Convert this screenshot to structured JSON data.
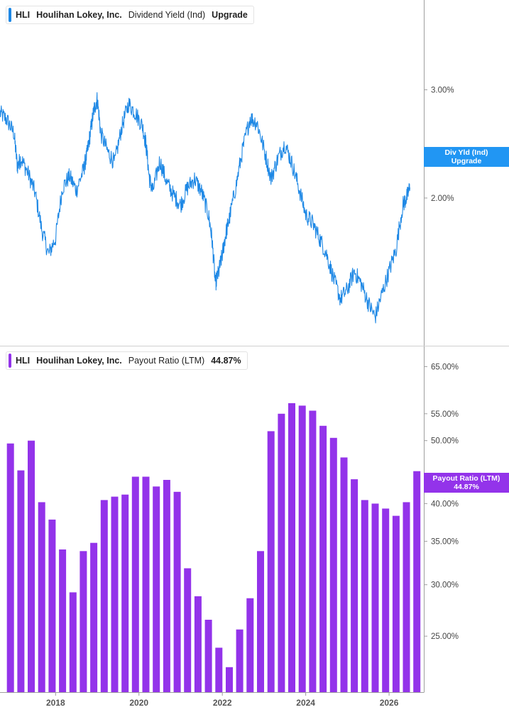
{
  "chart_data": [
    {
      "type": "line",
      "ticker": "HLI",
      "company": "Houlihan Lokey, Inc.",
      "series_name": "Dividend Yield (Ind)",
      "status": "Upgrade",
      "color": "#1e88e5",
      "yscale": "log",
      "ylim": [
        0.0115,
        0.042
      ],
      "y_ticks": [
        0.02,
        0.03
      ],
      "y_tick_labels": [
        "2.00%",
        "3.00%"
      ],
      "end_badge": [
        "Div Yld (Ind)",
        "Upgrade"
      ],
      "points": [
        [
          "2016-09",
          0.0275
        ],
        [
          "2016-11",
          0.0268
        ],
        [
          "2017-01",
          0.0255
        ],
        [
          "2017-02",
          0.0225
        ],
        [
          "2017-03",
          0.0232
        ],
        [
          "2017-05",
          0.022
        ],
        [
          "2017-07",
          0.0205
        ],
        [
          "2017-09",
          0.0178
        ],
        [
          "2017-11",
          0.0162
        ],
        [
          "2018-01",
          0.0172
        ],
        [
          "2018-03",
          0.0208
        ],
        [
          "2018-05",
          0.0217
        ],
        [
          "2018-07",
          0.0206
        ],
        [
          "2018-09",
          0.0222
        ],
        [
          "2018-10",
          0.0235
        ],
        [
          "2018-11",
          0.0255
        ],
        [
          "2018-12",
          0.0278
        ],
        [
          "2019-01",
          0.029
        ],
        [
          "2019-02",
          0.0255
        ],
        [
          "2019-04",
          0.0238
        ],
        [
          "2019-06",
          0.0228
        ],
        [
          "2019-08",
          0.026
        ],
        [
          "2019-10",
          0.0285
        ],
        [
          "2019-12",
          0.0275
        ],
        [
          "2020-02",
          0.0262
        ],
        [
          "2020-03",
          0.0245
        ],
        [
          "2020-04",
          0.0215
        ],
        [
          "2020-05",
          0.0205
        ],
        [
          "2020-07",
          0.023
        ],
        [
          "2020-09",
          0.0212
        ],
        [
          "2020-11",
          0.0202
        ],
        [
          "2021-01",
          0.0195
        ],
        [
          "2021-03",
          0.0208
        ],
        [
          "2021-05",
          0.0215
        ],
        [
          "2021-07",
          0.0205
        ],
        [
          "2021-09",
          0.0188
        ],
        [
          "2021-10",
          0.0172
        ],
        [
          "2021-11",
          0.0145
        ],
        [
          "2021-12",
          0.0152
        ],
        [
          "2022-01",
          0.0162
        ],
        [
          "2022-02",
          0.0175
        ],
        [
          "2022-03",
          0.0185
        ],
        [
          "2022-05",
          0.021
        ],
        [
          "2022-07",
          0.0242
        ],
        [
          "2022-09",
          0.027
        ],
        [
          "2022-11",
          0.0265
        ],
        [
          "2023-01",
          0.024
        ],
        [
          "2023-03",
          0.0215
        ],
        [
          "2023-05",
          0.0232
        ],
        [
          "2023-07",
          0.0245
        ],
        [
          "2023-09",
          0.0228
        ],
        [
          "2023-11",
          0.0208
        ],
        [
          "2024-01",
          0.0188
        ],
        [
          "2024-03",
          0.0182
        ],
        [
          "2024-05",
          0.0172
        ],
        [
          "2024-07",
          0.0162
        ],
        [
          "2024-09",
          0.0148
        ],
        [
          "2024-11",
          0.0137
        ],
        [
          "2025-01",
          0.0142
        ],
        [
          "2025-03",
          0.0152
        ],
        [
          "2025-05",
          0.0145
        ],
        [
          "2025-07",
          0.0135
        ],
        [
          "2025-09",
          0.0128
        ],
        [
          "2025-11",
          0.014
        ],
        [
          "2026-01",
          0.0152
        ],
        [
          "2026-03",
          0.0165
        ],
        [
          "2026-05",
          0.0195
        ],
        [
          "2026-06",
          0.02
        ],
        [
          "2026-07",
          0.0208
        ]
      ]
    },
    {
      "type": "bar",
      "ticker": "HLI",
      "company": "Houlihan Lokey, Inc.",
      "series_name": "Payout Ratio (LTM)",
      "last_value": "44.87%",
      "color": "#9333ea",
      "yscale": "log",
      "ylim": [
        0.205,
        0.7
      ],
      "y_ticks": [
        0.25,
        0.3,
        0.35,
        0.4,
        0.5,
        0.55,
        0.65
      ],
      "y_tick_labels": [
        "25.00%",
        "30.00%",
        "35.00%",
        "40.00%",
        "50.00%",
        "55.00%",
        "65.00%"
      ],
      "end_badge": [
        "Payout Ratio (LTM)",
        "44.87%"
      ],
      "bars": [
        [
          "2016-12",
          0.495
        ],
        [
          "2017-03",
          0.45
        ],
        [
          "2017-06",
          0.5
        ],
        [
          "2017-09",
          0.402
        ],
        [
          "2017-12",
          0.378
        ],
        [
          "2018-03",
          0.34
        ],
        [
          "2018-06",
          0.292
        ],
        [
          "2018-09",
          0.338
        ],
        [
          "2018-12",
          0.348
        ],
        [
          "2019-03",
          0.405
        ],
        [
          "2019-06",
          0.41
        ],
        [
          "2019-09",
          0.413
        ],
        [
          "2019-12",
          0.44
        ],
        [
          "2020-03",
          0.44
        ],
        [
          "2020-06",
          0.425
        ],
        [
          "2020-09",
          0.435
        ],
        [
          "2020-12",
          0.417
        ],
        [
          "2021-03",
          0.318
        ],
        [
          "2021-06",
          0.288
        ],
        [
          "2021-09",
          0.265
        ],
        [
          "2021-12",
          0.24
        ],
        [
          "2022-03",
          0.224
        ],
        [
          "2022-06",
          0.256
        ],
        [
          "2022-09",
          0.286
        ],
        [
          "2022-12",
          0.338
        ],
        [
          "2023-03",
          0.517
        ],
        [
          "2023-06",
          0.55
        ],
        [
          "2023-09",
          0.571
        ],
        [
          "2023-12",
          0.566
        ],
        [
          "2024-03",
          0.556
        ],
        [
          "2024-06",
          0.527
        ],
        [
          "2024-09",
          0.505
        ],
        [
          "2024-12",
          0.471
        ],
        [
          "2025-03",
          0.436
        ],
        [
          "2025-06",
          0.405
        ],
        [
          "2025-09",
          0.4
        ],
        [
          "2025-12",
          0.393
        ],
        [
          "2026-03",
          0.383
        ],
        [
          "2026-06",
          0.402
        ],
        [
          "2026-09",
          0.4487
        ]
      ]
    }
  ],
  "x_axis": {
    "range": [
      "2016-09",
      "2026-11"
    ],
    "ticks": [
      "2018",
      "2020",
      "2022",
      "2024",
      "2026"
    ]
  }
}
